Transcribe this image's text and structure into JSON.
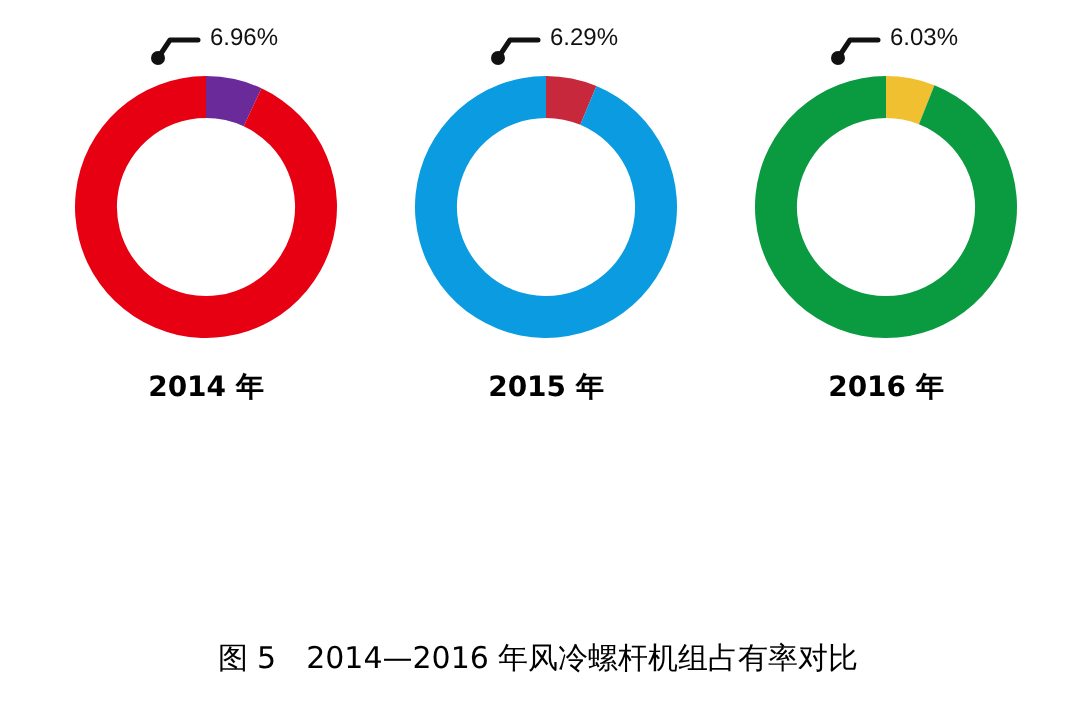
{
  "chart_data": [
    {
      "type": "donut",
      "title": "2014 年",
      "categories": [
        null,
        null
      ],
      "values": [
        6.96,
        93.04
      ],
      "colors": [
        "#6a2a9a",
        "#e60012"
      ],
      "value_labels": [
        "6.96%",
        null
      ],
      "annotations": [
        "图 5　2014—2016 年风冷螺杆机组占有率对比"
      ]
    },
    {
      "type": "donut",
      "title": "2015 年",
      "categories": [
        null,
        null
      ],
      "values": [
        6.29,
        93.71
      ],
      "colors": [
        "#c8283c",
        "#0a9be0"
      ],
      "value_labels": [
        "6.29%",
        null
      ]
    },
    {
      "type": "donut",
      "title": "2016 年",
      "categories": [
        null,
        null
      ],
      "values": [
        6.03,
        93.97
      ],
      "colors": [
        "#f0c030",
        "#0a9a40"
      ],
      "value_labels": [
        "6.03%",
        null
      ]
    }
  ]
}
